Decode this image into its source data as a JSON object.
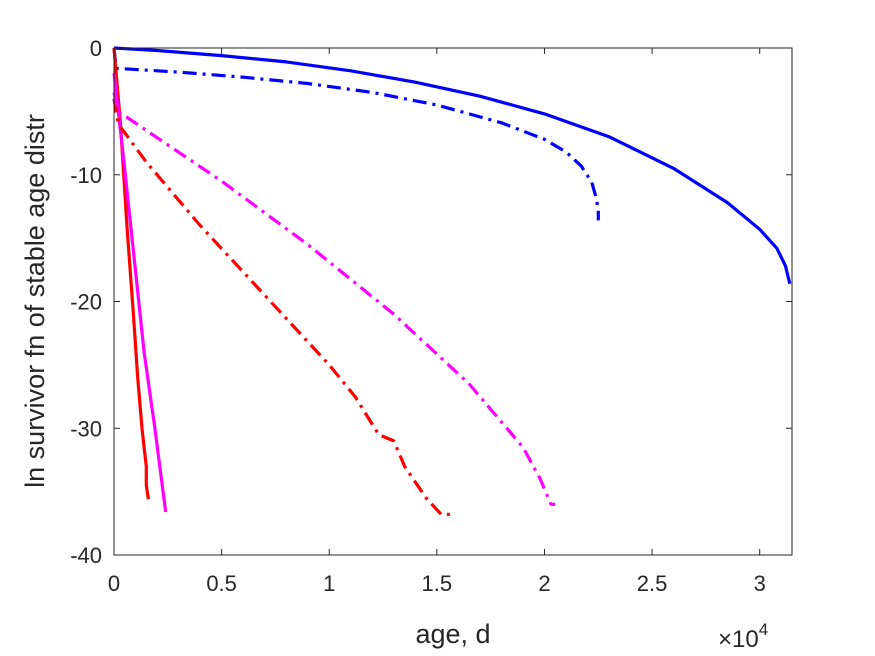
{
  "chart_data": {
    "type": "line",
    "title": "",
    "xlabel": "age, d",
    "ylabel": "ln survivor fn of stable age distr",
    "x_exponent_label": {
      "base": "×10",
      "exponent": "4"
    },
    "xlim": [
      0,
      31500
    ],
    "ylim": [
      -40,
      0
    ],
    "x_ticks": [
      0,
      5000,
      10000,
      15000,
      20000,
      25000,
      30000
    ],
    "x_tick_labels": [
      "0",
      "0.5",
      "1",
      "1.5",
      "2",
      "2.5",
      "3"
    ],
    "y_ticks": [
      -40,
      -30,
      -20,
      -10,
      0
    ],
    "y_tick_labels": [
      "-40",
      "-30",
      "-20",
      "-10",
      "0"
    ],
    "grid": false,
    "box": true,
    "series": [
      {
        "color": "#0000ff",
        "style": "solid",
        "x": [
          0,
          2000,
          5000,
          8000,
          11000,
          14000,
          17000,
          20000,
          23000,
          26000,
          28500,
          30000,
          30800,
          31200,
          31400
        ],
        "y": [
          0,
          -0.2,
          -0.6,
          -1.1,
          -1.8,
          -2.7,
          -3.8,
          -5.2,
          -7.0,
          -9.5,
          -12.2,
          -14.3,
          -15.8,
          -17.2,
          -18.6
        ]
      },
      {
        "color": "#0000ff",
        "style": "dashdot",
        "x": [
          0,
          100,
          3000,
          6000,
          9000,
          12000,
          15000,
          18000,
          20000,
          21000,
          21700,
          22200,
          22400,
          22500,
          22500
        ],
        "y": [
          0,
          -1.6,
          -1.9,
          -2.3,
          -2.8,
          -3.5,
          -4.5,
          -5.9,
          -7.2,
          -8.2,
          -9.3,
          -10.6,
          -11.8,
          -12.8,
          -13.6
        ]
      },
      {
        "color": "#ff0000",
        "style": "solid",
        "x": [
          0,
          300,
          600,
          900,
          1100,
          1300,
          1400,
          1500,
          1500,
          1600
        ],
        "y": [
          0,
          -6,
          -14,
          -21,
          -26,
          -30,
          -31.5,
          -33,
          -34.5,
          -35.6
        ]
      },
      {
        "color": "#ff00ff",
        "style": "solid",
        "x": [
          0,
          400,
          900,
          1400,
          1900,
          2200,
          2400
        ],
        "y": [
          -2,
          -8,
          -16,
          -24,
          -30,
          -34,
          -36.6
        ]
      },
      {
        "color": "#ff0000",
        "style": "dashdot",
        "x": [
          0,
          200,
          1500,
          4000,
          7000,
          10000,
          11200,
          12300,
          13000,
          13500,
          14500,
          15200,
          15600
        ],
        "y": [
          -4,
          -6,
          -9,
          -14,
          -19.5,
          -25,
          -27.5,
          -30.5,
          -31,
          -33,
          -35.5,
          -36.8,
          -36.8
        ]
      },
      {
        "color": "#ff00ff",
        "style": "dashdot",
        "x": [
          0,
          200,
          1500,
          5000,
          9000,
          13000,
          16500,
          19000,
          19800,
          20300,
          20500
        ],
        "y": [
          -3.5,
          -5,
          -6.5,
          -10.5,
          -15.5,
          -21,
          -26.5,
          -31.5,
          -34,
          -36,
          -36
        ]
      }
    ]
  }
}
